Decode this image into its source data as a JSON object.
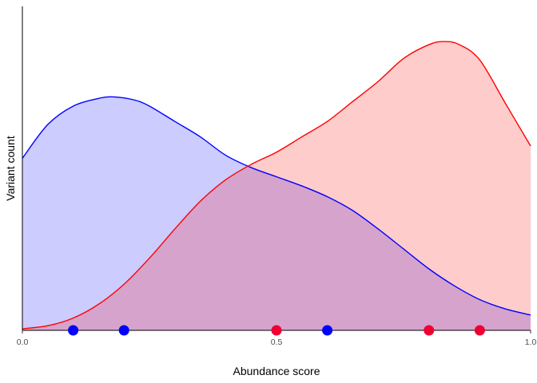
{
  "chart_data": {
    "type": "area",
    "subtype": "density",
    "title": "",
    "xlabel": "Abundance score",
    "ylabel": "Variant count",
    "xlim": [
      0.0,
      1.0
    ],
    "ylim": [
      0.0,
      1.0
    ],
    "x_ticks": [
      0.0,
      0.5,
      1.0
    ],
    "x_tick_labels": [
      "0.0",
      "0.5",
      "1.0"
    ],
    "y_ticks_shown": false,
    "grid": false,
    "legend": "none",
    "series": [
      {
        "color": "#0000ff",
        "fill": "#ccccff",
        "x": [
          0.0,
          0.05,
          0.1,
          0.15,
          0.18,
          0.22,
          0.25,
          0.3,
          0.35,
          0.4,
          0.45,
          0.5,
          0.55,
          0.6,
          0.65,
          0.7,
          0.75,
          0.8,
          0.85,
          0.9,
          0.95,
          1.0
        ],
        "y": [
          0.56,
          0.67,
          0.73,
          0.755,
          0.76,
          0.75,
          0.73,
          0.68,
          0.63,
          0.57,
          0.53,
          0.5,
          0.47,
          0.435,
          0.39,
          0.33,
          0.265,
          0.2,
          0.145,
          0.1,
          0.07,
          0.05
        ],
        "points": [
          0.1,
          0.2,
          0.6
        ]
      },
      {
        "color": "#ff0000",
        "fill": "#ffcccc",
        "x": [
          0.0,
          0.05,
          0.1,
          0.15,
          0.2,
          0.25,
          0.3,
          0.35,
          0.4,
          0.45,
          0.5,
          0.55,
          0.6,
          0.65,
          0.7,
          0.75,
          0.8,
          0.83,
          0.86,
          0.9,
          0.95,
          1.0
        ],
        "y": [
          0.005,
          0.015,
          0.04,
          0.085,
          0.15,
          0.235,
          0.33,
          0.42,
          0.49,
          0.54,
          0.58,
          0.63,
          0.68,
          0.745,
          0.81,
          0.885,
          0.93,
          0.94,
          0.93,
          0.88,
          0.74,
          0.6
        ],
        "points": [
          0.5,
          0.8,
          0.9
        ]
      }
    ],
    "overlap_fill": "#d5a3cf",
    "point_colors": [
      "#0000ff",
      "#ee0033"
    ]
  }
}
